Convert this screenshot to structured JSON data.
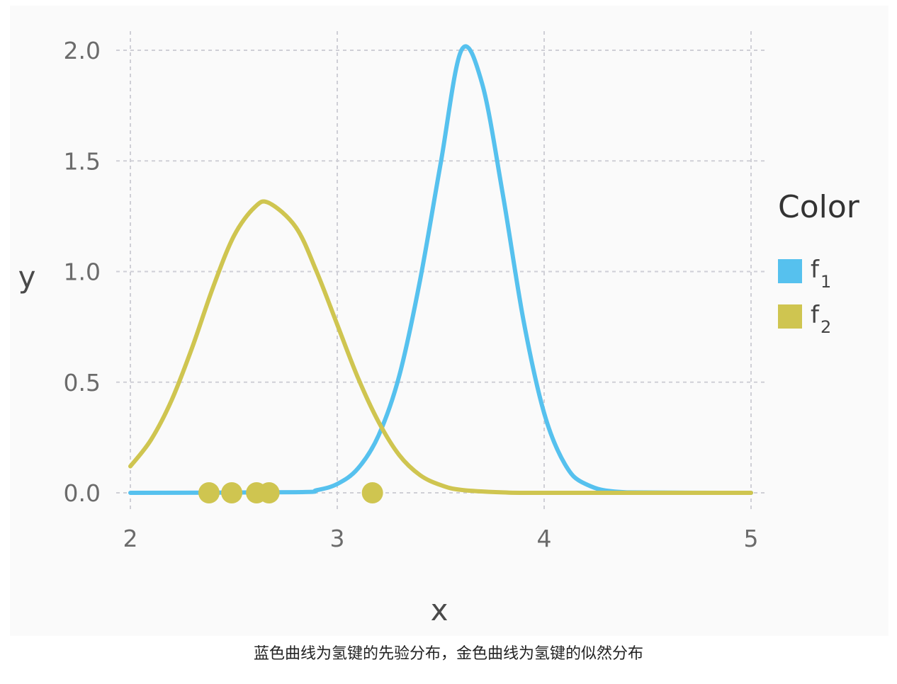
{
  "chart_data": {
    "type": "line",
    "xlabel": "x",
    "ylabel": "y",
    "xlim": [
      2,
      5
    ],
    "ylim": [
      0,
      2
    ],
    "x_ticks": [
      "2",
      "3",
      "4",
      "5"
    ],
    "y_ticks": [
      "0.0",
      "0.5",
      "1.0",
      "1.5",
      "2.0"
    ],
    "grid": true,
    "legend": {
      "title": "Color",
      "placement": "right",
      "entries": [
        {
          "base": "f",
          "sub": "1",
          "color": "#56c1ee"
        },
        {
          "base": "f",
          "sub": "2",
          "color": "#cfc550"
        }
      ]
    },
    "series": [
      {
        "color": "#56c1ee",
        "x": [
          2.0,
          2.8,
          2.9,
          3.0,
          3.1,
          3.2,
          3.3,
          3.4,
          3.5,
          3.6,
          3.7,
          3.8,
          3.9,
          4.0,
          4.1,
          4.2,
          4.4,
          5.0
        ],
        "y": [
          0.0,
          0.003,
          0.012,
          0.04,
          0.11,
          0.26,
          0.53,
          0.96,
          1.49,
          2.0,
          1.85,
          1.35,
          0.78,
          0.36,
          0.13,
          0.04,
          0.002,
          0.0
        ]
      },
      {
        "color": "#cfc550",
        "x": [
          2.0,
          2.1,
          2.2,
          2.3,
          2.4,
          2.5,
          2.6,
          2.67,
          2.8,
          2.9,
          3.0,
          3.1,
          3.2,
          3.3,
          3.4,
          3.5,
          3.6,
          3.8,
          4.0,
          5.0
        ],
        "y": [
          0.12,
          0.24,
          0.42,
          0.66,
          0.93,
          1.16,
          1.29,
          1.31,
          1.2,
          1.0,
          0.76,
          0.52,
          0.32,
          0.17,
          0.08,
          0.035,
          0.013,
          0.002,
          0.0,
          0.0
        ]
      }
    ],
    "points": {
      "color": "#cfc550",
      "x": [
        2.38,
        2.49,
        2.61,
        2.67,
        3.17
      ],
      "y": [
        0,
        0,
        0,
        0,
        0
      ]
    }
  },
  "caption": "蓝色曲线为氢键的先验分布，金色曲线为氢键的似然分布"
}
